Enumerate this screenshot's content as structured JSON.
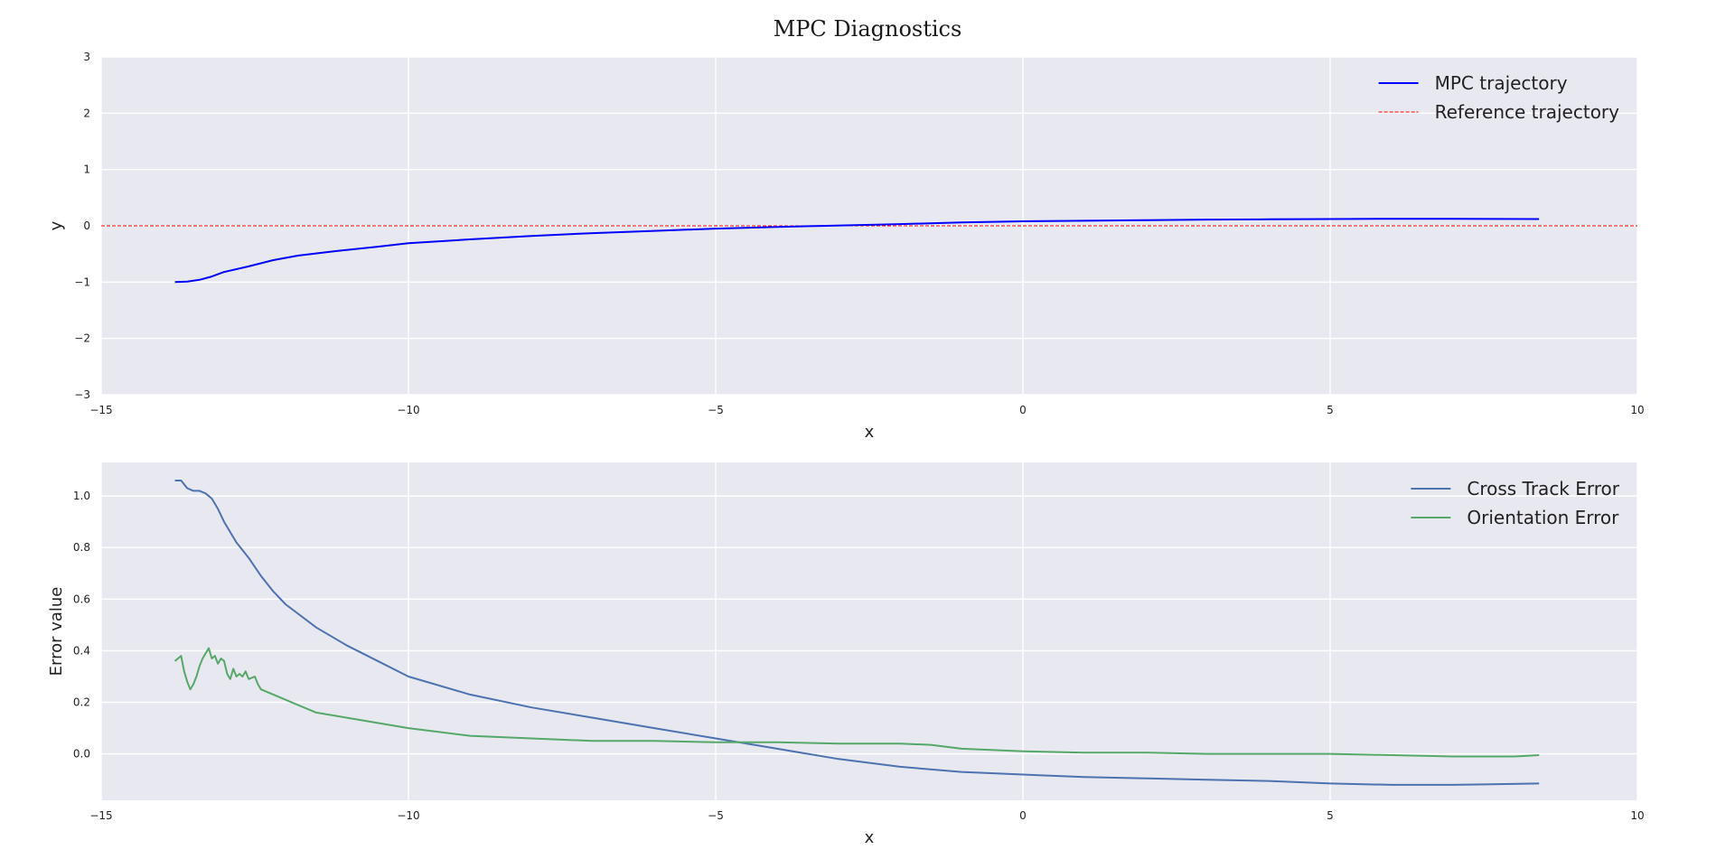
{
  "title": "MPC Diagnostics",
  "chart_data": [
    {
      "type": "line",
      "xlabel": "x",
      "ylabel": "y",
      "xlim": [
        -15,
        10
      ],
      "ylim": [
        -3,
        3
      ],
      "xticks": [
        -15,
        -10,
        -5,
        0,
        5,
        10
      ],
      "yticks": [
        3,
        2,
        1,
        0,
        -1,
        -2,
        -3
      ],
      "xtick_labels": [
        "−15",
        "−10",
        "−5",
        "0",
        "5",
        "10"
      ],
      "ytick_labels": [
        "3",
        "2",
        "1",
        "0",
        "−1",
        "−2",
        "−3"
      ],
      "grid": true,
      "legend_position": "top-right",
      "series": [
        {
          "name": "MPC trajectory",
          "color": "#0000ff",
          "style": "solid",
          "points": [
            [
              -13.8,
              -1.0
            ],
            [
              -13.6,
              -0.99
            ],
            [
              -13.4,
              -0.96
            ],
            [
              -13.2,
              -0.9
            ],
            [
              -13.0,
              -0.82
            ],
            [
              -12.6,
              -0.72
            ],
            [
              -12.2,
              -0.61
            ],
            [
              -11.8,
              -0.53
            ],
            [
              -11.2,
              -0.45
            ],
            [
              -10.5,
              -0.37
            ],
            [
              -10.0,
              -0.31
            ],
            [
              -9.0,
              -0.24
            ],
            [
              -8.0,
              -0.18
            ],
            [
              -7.0,
              -0.13
            ],
            [
              -6.0,
              -0.09
            ],
            [
              -5.0,
              -0.05
            ],
            [
              -4.0,
              -0.02
            ],
            [
              -3.2,
              0.0
            ],
            [
              -2.0,
              0.03
            ],
            [
              -1.0,
              0.06
            ],
            [
              0.0,
              0.08
            ],
            [
              1.0,
              0.09
            ],
            [
              2.0,
              0.1
            ],
            [
              3.0,
              0.11
            ],
            [
              4.0,
              0.115
            ],
            [
              5.0,
              0.12
            ],
            [
              6.0,
              0.125
            ],
            [
              7.0,
              0.125
            ],
            [
              8.4,
              0.12
            ]
          ]
        },
        {
          "name": "Reference trajectory",
          "color": "#ff0000",
          "style": "dashed",
          "points": [
            [
              -15,
              0
            ],
            [
              10,
              0
            ]
          ]
        }
      ]
    },
    {
      "type": "line",
      "xlabel": "x",
      "ylabel": "Error value",
      "xlim": [
        -15,
        10
      ],
      "ylim": [
        -0.18,
        1.13
      ],
      "xticks": [
        -15,
        -10,
        -5,
        0,
        5,
        10
      ],
      "yticks": [
        1.0,
        0.8,
        0.6,
        0.4,
        0.2,
        0.0
      ],
      "xtick_labels": [
        "−15",
        "−10",
        "−5",
        "0",
        "5",
        "10"
      ],
      "ytick_labels": [
        "1.0",
        "0.8",
        "0.6",
        "0.4",
        "0.2",
        "0.0"
      ],
      "grid": true,
      "legend_position": "top-right",
      "series": [
        {
          "name": "Cross Track Error",
          "color": "#4c72b0",
          "style": "solid",
          "points": [
            [
              -13.8,
              1.06
            ],
            [
              -13.7,
              1.06
            ],
            [
              -13.6,
              1.03
            ],
            [
              -13.5,
              1.02
            ],
            [
              -13.4,
              1.02
            ],
            [
              -13.3,
              1.01
            ],
            [
              -13.2,
              0.99
            ],
            [
              -13.1,
              0.95
            ],
            [
              -13.0,
              0.9
            ],
            [
              -12.9,
              0.86
            ],
            [
              -12.8,
              0.82
            ],
            [
              -12.6,
              0.76
            ],
            [
              -12.4,
              0.69
            ],
            [
              -12.2,
              0.63
            ],
            [
              -12.0,
              0.58
            ],
            [
              -11.5,
              0.49
            ],
            [
              -11.0,
              0.42
            ],
            [
              -10.5,
              0.36
            ],
            [
              -10.0,
              0.3
            ],
            [
              -9.0,
              0.23
            ],
            [
              -8.0,
              0.18
            ],
            [
              -7.0,
              0.14
            ],
            [
              -6.0,
              0.1
            ],
            [
              -5.0,
              0.06
            ],
            [
              -4.0,
              0.02
            ],
            [
              -3.0,
              -0.02
            ],
            [
              -2.0,
              -0.05
            ],
            [
              -1.0,
              -0.07
            ],
            [
              0.0,
              -0.08
            ],
            [
              1.0,
              -0.09
            ],
            [
              2.0,
              -0.095
            ],
            [
              3.0,
              -0.1
            ],
            [
              4.0,
              -0.105
            ],
            [
              5.0,
              -0.115
            ],
            [
              6.0,
              -0.12
            ],
            [
              7.0,
              -0.12
            ],
            [
              8.4,
              -0.115
            ]
          ]
        },
        {
          "name": "Orientation Error",
          "color": "#55a868",
          "style": "solid",
          "points": [
            [
              -13.8,
              0.36
            ],
            [
              -13.7,
              0.38
            ],
            [
              -13.65,
              0.32
            ],
            [
              -13.6,
              0.28
            ],
            [
              -13.55,
              0.25
            ],
            [
              -13.5,
              0.27
            ],
            [
              -13.45,
              0.3
            ],
            [
              -13.4,
              0.34
            ],
            [
              -13.35,
              0.37
            ],
            [
              -13.3,
              0.39
            ],
            [
              -13.25,
              0.41
            ],
            [
              -13.2,
              0.37
            ],
            [
              -13.15,
              0.38
            ],
            [
              -13.1,
              0.35
            ],
            [
              -13.05,
              0.37
            ],
            [
              -13.0,
              0.36
            ],
            [
              -12.95,
              0.31
            ],
            [
              -12.9,
              0.29
            ],
            [
              -12.85,
              0.33
            ],
            [
              -12.8,
              0.3
            ],
            [
              -12.75,
              0.31
            ],
            [
              -12.7,
              0.3
            ],
            [
              -12.65,
              0.32
            ],
            [
              -12.6,
              0.29
            ],
            [
              -12.5,
              0.3
            ],
            [
              -12.45,
              0.27
            ],
            [
              -12.4,
              0.25
            ],
            [
              -12.3,
              0.24
            ],
            [
              -12.2,
              0.23
            ],
            [
              -12.0,
              0.21
            ],
            [
              -11.8,
              0.19
            ],
            [
              -11.5,
              0.16
            ],
            [
              -11.0,
              0.14
            ],
            [
              -10.5,
              0.12
            ],
            [
              -10.0,
              0.1
            ],
            [
              -9.0,
              0.07
            ],
            [
              -8.0,
              0.06
            ],
            [
              -7.0,
              0.05
            ],
            [
              -6.0,
              0.05
            ],
            [
              -5.0,
              0.045
            ],
            [
              -4.0,
              0.045
            ],
            [
              -3.0,
              0.04
            ],
            [
              -2.0,
              0.04
            ],
            [
              -1.5,
              0.035
            ],
            [
              -1.0,
              0.02
            ],
            [
              0.0,
              0.01
            ],
            [
              1.0,
              0.005
            ],
            [
              2.0,
              0.005
            ],
            [
              3.0,
              0.0
            ],
            [
              4.0,
              0.0
            ],
            [
              5.0,
              0.0
            ],
            [
              6.0,
              -0.005
            ],
            [
              7.0,
              -0.01
            ],
            [
              8.0,
              -0.01
            ],
            [
              8.4,
              -0.005
            ]
          ]
        }
      ]
    }
  ]
}
